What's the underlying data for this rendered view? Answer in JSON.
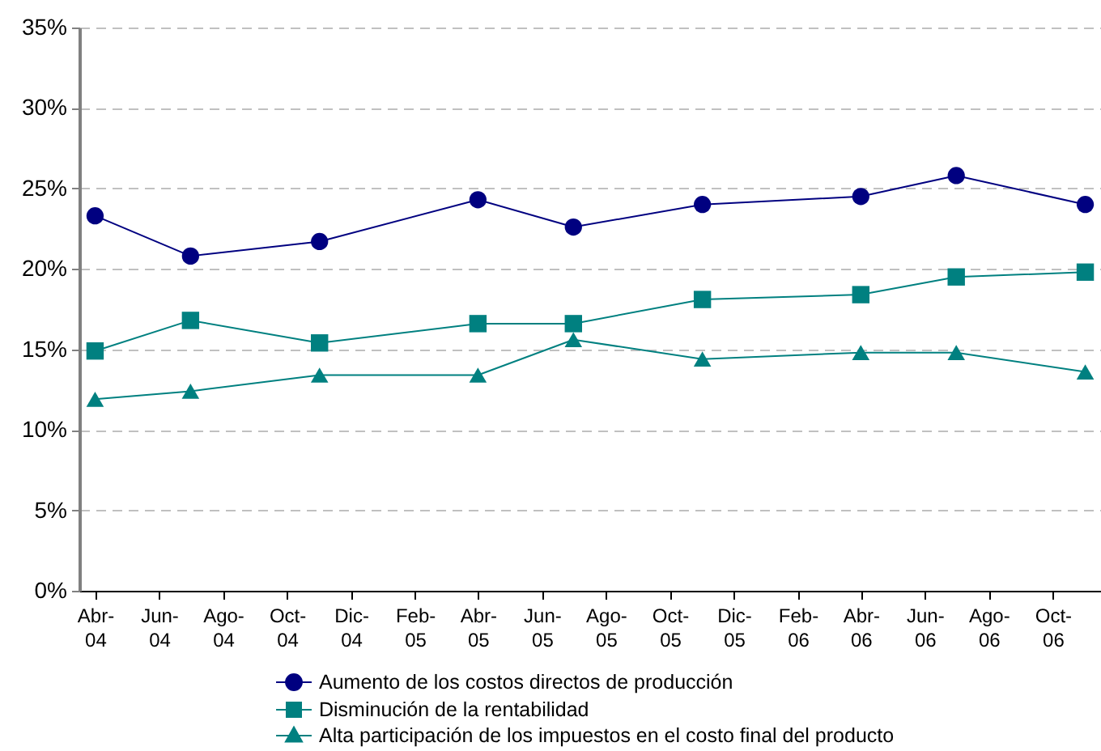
{
  "chart_data": {
    "type": "line",
    "x": [
      "2004-04-16",
      "2004-07-16",
      "2004-11-16",
      "2005-04-16",
      "2005-07-16",
      "2005-11-16",
      "2006-04-16",
      "2006-07-16",
      "2006-11-16"
    ],
    "series": [
      {
        "name": "Aumento de los costos directos de producción",
        "color": "#000080",
        "marker": "circle",
        "values": [
          23.3,
          20.8,
          21.7,
          24.3,
          22.6,
          24.0,
          24.5,
          25.8,
          24.0
        ]
      },
      {
        "name": "Disminución de la rentabilidad",
        "color": "#008080",
        "marker": "square",
        "values": [
          14.9,
          16.8,
          15.4,
          16.6,
          16.6,
          18.1,
          18.4,
          19.5,
          19.8
        ]
      },
      {
        "name": "Alta participación de los impuestos en el costo final del producto",
        "color": "#008080",
        "marker": "triangle",
        "values": [
          11.9,
          12.4,
          13.4,
          13.4,
          15.6,
          14.4,
          14.8,
          14.8,
          13.6
        ]
      }
    ],
    "xlim": [
      "2004-04-01",
      "2006-12-01"
    ],
    "xticks": [
      {
        "value": "2004-04-16",
        "label": "Abr-04"
      },
      {
        "value": "2004-06-16",
        "label": "Jun-04"
      },
      {
        "value": "2004-08-16",
        "label": "Ago-04"
      },
      {
        "value": "2004-10-16",
        "label": "Oct-04"
      },
      {
        "value": "2004-12-16",
        "label": "Dic-04"
      },
      {
        "value": "2005-02-15",
        "label": "Feb-05"
      },
      {
        "value": "2005-04-16",
        "label": "Abr-05"
      },
      {
        "value": "2005-06-16",
        "label": "Jun-05"
      },
      {
        "value": "2005-08-16",
        "label": "Ago-05"
      },
      {
        "value": "2005-10-16",
        "label": "Oct-05"
      },
      {
        "value": "2005-12-16",
        "label": "Dic-05"
      },
      {
        "value": "2006-02-15",
        "label": "Feb-06"
      },
      {
        "value": "2006-04-16",
        "label": "Abr-06"
      },
      {
        "value": "2006-06-16",
        "label": "Jun-06"
      },
      {
        "value": "2006-08-16",
        "label": "Ago-06"
      },
      {
        "value": "2006-10-16",
        "label": "Oct-06"
      }
    ],
    "ylim": [
      0,
      35
    ],
    "yticks": [
      {
        "value": 0,
        "label": "0%"
      },
      {
        "value": 5,
        "label": "5%"
      },
      {
        "value": 10,
        "label": "10%"
      },
      {
        "value": 15,
        "label": "15%"
      },
      {
        "value": 20,
        "label": "20%"
      },
      {
        "value": 25,
        "label": "25%"
      },
      {
        "value": 30,
        "label": "30%"
      },
      {
        "value": 35,
        "label": "35%"
      }
    ],
    "grid": "y",
    "legend": "bottom",
    "line_style": "solid"
  }
}
